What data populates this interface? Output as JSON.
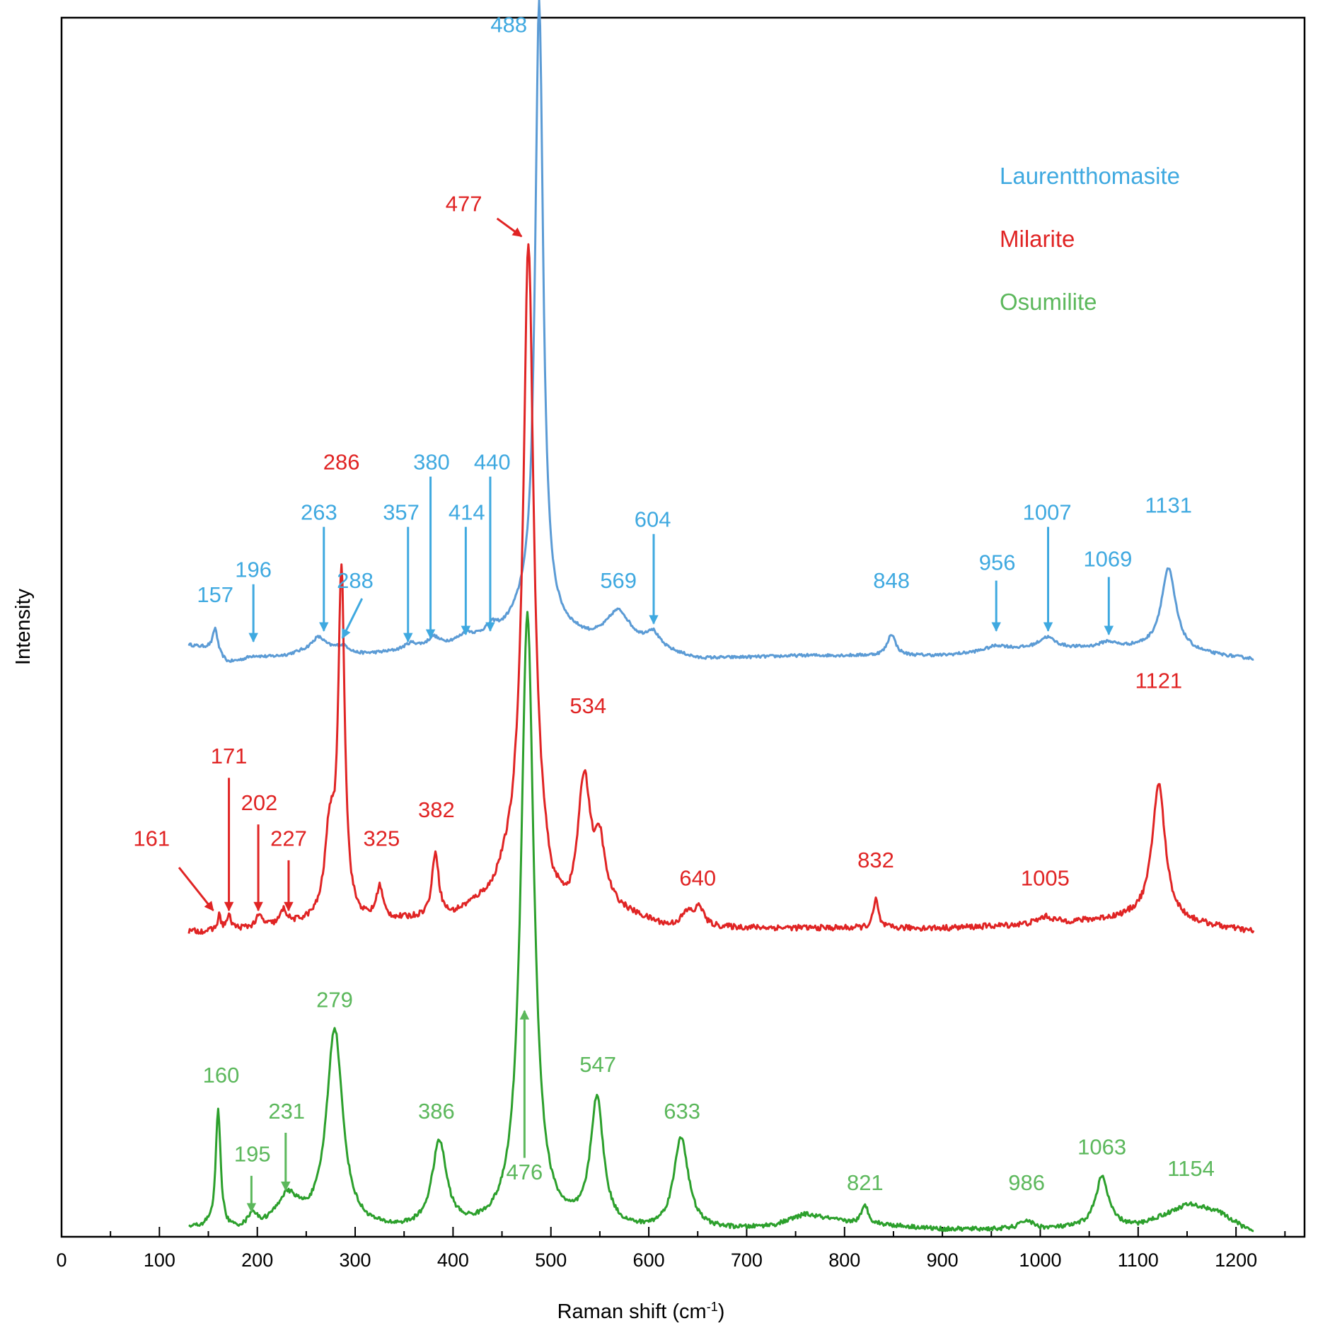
{
  "chart_data": {
    "type": "line",
    "title": "",
    "xlabel": "Raman shift (cm",
    "xlabel_sup": "-1",
    "xlabel_close": ")",
    "ylabel": "Intensity",
    "xlim": [
      0,
      1270
    ],
    "ylim": [
      0,
      1.7
    ],
    "x_ticks": [
      0,
      100,
      200,
      300,
      400,
      500,
      600,
      700,
      800,
      900,
      1000,
      1100,
      1200
    ],
    "y_ticks_shown": false,
    "grid": false,
    "legend_placement": "top-right",
    "series": [
      {
        "name": "Laurentthomasite",
        "color": "#5b9bd5",
        "label_color": "#3fa9e0",
        "baseline": 0.8,
        "x_range": [
          130,
          1218
        ],
        "noise": 0.002,
        "base_points": [
          [
            130,
            0.025
          ],
          [
            150,
            0.02
          ],
          [
            170,
            0.0
          ],
          [
            200,
            0.005
          ],
          [
            230,
            0.01
          ],
          [
            260,
            0.02
          ],
          [
            300,
            0.01
          ],
          [
            340,
            0.015
          ],
          [
            420,
            0.03
          ],
          [
            450,
            0.04
          ],
          [
            470,
            0.06
          ],
          [
            540,
            0.03
          ],
          [
            600,
            0.02
          ],
          [
            650,
            0.005
          ],
          [
            760,
            0.01
          ],
          [
            900,
            0.01
          ],
          [
            1000,
            0.02
          ],
          [
            1100,
            0.02
          ],
          [
            1218,
            0.005
          ]
        ],
        "peaks": [
          {
            "x": 157,
            "height": 0.035,
            "width": 3
          },
          {
            "x": 196,
            "height": 0.005,
            "width": 10
          },
          {
            "x": 263,
            "height": 0.015,
            "width": 8
          },
          {
            "x": 288,
            "height": 0.01,
            "width": 10
          },
          {
            "x": 357,
            "height": 0.008,
            "width": 8
          },
          {
            "x": 380,
            "height": 0.012,
            "width": 6
          },
          {
            "x": 414,
            "height": 0.01,
            "width": 8
          },
          {
            "x": 440,
            "height": 0.012,
            "width": 8
          },
          {
            "x": 488,
            "height": 0.87,
            "width": 5
          },
          {
            "x": 569,
            "height": 0.045,
            "width": 15
          },
          {
            "x": 604,
            "height": 0.02,
            "width": 8
          },
          {
            "x": 848,
            "height": 0.03,
            "width": 5
          },
          {
            "x": 956,
            "height": 0.008,
            "width": 15
          },
          {
            "x": 1007,
            "height": 0.015,
            "width": 10
          },
          {
            "x": 1069,
            "height": 0.008,
            "width": 10
          },
          {
            "x": 1131,
            "height": 0.115,
            "width": 9
          }
        ],
        "labels": [
          {
            "text": "157",
            "x": 157,
            "y": 0.885,
            "arrow": false
          },
          {
            "text": "196",
            "x": 196,
            "y": 0.92,
            "arrow": true,
            "arrow_from": [
              196,
              0.91
            ],
            "arrow_to": [
              196,
              0.83
            ]
          },
          {
            "text": "263",
            "x": 263,
            "y": 1.0,
            "arrow": true,
            "arrow_from": [
              268,
              0.99
            ],
            "arrow_to": [
              268,
              0.845
            ]
          },
          {
            "text": "288",
            "x": 300,
            "y": 0.905,
            "arrow": true,
            "arrow_from": [
              307,
              0.89
            ],
            "arrow_to": [
              287,
              0.835
            ]
          },
          {
            "text": "357",
            "x": 347,
            "y": 1.0,
            "arrow": true,
            "arrow_from": [
              354,
              0.99
            ],
            "arrow_to": [
              354,
              0.83
            ]
          },
          {
            "text": "380",
            "x": 378,
            "y": 1.07,
            "arrow": true,
            "arrow_from": [
              377,
              1.06
            ],
            "arrow_to": [
              377,
              0.835
            ]
          },
          {
            "text": "414",
            "x": 414,
            "y": 1.0,
            "arrow": true,
            "arrow_from": [
              413,
              0.99
            ],
            "arrow_to": [
              413,
              0.84
            ]
          },
          {
            "text": "440",
            "x": 440,
            "y": 1.07,
            "arrow": true,
            "arrow_from": [
              438,
              1.06
            ],
            "arrow_to": [
              438,
              0.845
            ]
          },
          {
            "text": "488",
            "x": 457,
            "y": 1.68,
            "arrow": false
          },
          {
            "text": "569",
            "x": 569,
            "y": 0.905,
            "arrow": false
          },
          {
            "text": "604",
            "x": 604,
            "y": 0.99,
            "arrow": true,
            "arrow_from": [
              605,
              0.98
            ],
            "arrow_to": [
              605,
              0.855
            ]
          },
          {
            "text": "848",
            "x": 848,
            "y": 0.905,
            "arrow": false
          },
          {
            "text": "956",
            "x": 956,
            "y": 0.93,
            "arrow": true,
            "arrow_from": [
              955,
              0.915
            ],
            "arrow_to": [
              955,
              0.845
            ]
          },
          {
            "text": "1007",
            "x": 1007,
            "y": 1.0,
            "arrow": true,
            "arrow_from": [
              1008,
              0.99
            ],
            "arrow_to": [
              1008,
              0.845
            ]
          },
          {
            "text": "1069",
            "x": 1069,
            "y": 0.935,
            "arrow": true,
            "arrow_from": [
              1070,
              0.92
            ],
            "arrow_to": [
              1070,
              0.84
            ]
          },
          {
            "text": "1131",
            "x": 1131,
            "y": 1.01,
            "arrow": false
          }
        ]
      },
      {
        "name": "Milarite",
        "color": "#e02424",
        "label_color": "#e02424",
        "baseline": 0.425,
        "x_range": [
          130,
          1218
        ],
        "noise": 0.004,
        "base_points": [
          [
            130,
            0.0
          ],
          [
            150,
            0.0
          ],
          [
            250,
            0.01
          ],
          [
            300,
            0.01
          ],
          [
            400,
            0.02
          ],
          [
            440,
            0.05
          ],
          [
            460,
            0.1
          ],
          [
            470,
            0.15
          ],
          [
            480,
            0.16
          ],
          [
            500,
            0.04
          ],
          [
            520,
            0.01
          ],
          [
            560,
            0.03
          ],
          [
            620,
            0.005
          ],
          [
            700,
            0.005
          ],
          [
            900,
            0.005
          ],
          [
            1000,
            0.01
          ],
          [
            1100,
            0.02
          ],
          [
            1160,
            0.01
          ],
          [
            1218,
            0.0
          ]
        ],
        "peaks": [
          {
            "x": 161,
            "height": 0.02,
            "width": 2
          },
          {
            "x": 171,
            "height": 0.018,
            "width": 3
          },
          {
            "x": 202,
            "height": 0.015,
            "width": 4
          },
          {
            "x": 227,
            "height": 0.02,
            "width": 4
          },
          {
            "x": 274,
            "height": 0.12,
            "width": 6
          },
          {
            "x": 286,
            "height": 0.48,
            "width": 4
          },
          {
            "x": 325,
            "height": 0.045,
            "width": 4
          },
          {
            "x": 382,
            "height": 0.09,
            "width": 4
          },
          {
            "x": 477,
            "height": 0.8,
            "width": 6
          },
          {
            "x": 534,
            "height": 0.19,
            "width": 8
          },
          {
            "x": 550,
            "height": 0.08,
            "width": 6
          },
          {
            "x": 640,
            "height": 0.02,
            "width": 8
          },
          {
            "x": 652,
            "height": 0.025,
            "width": 5
          },
          {
            "x": 832,
            "height": 0.04,
            "width": 3
          },
          {
            "x": 1005,
            "height": 0.01,
            "width": 10
          },
          {
            "x": 1121,
            "height": 0.19,
            "width": 8
          }
        ],
        "labels": [
          {
            "text": "161",
            "x": 92,
            "y": 0.545,
            "arrow": true,
            "arrow_from": [
              120,
              0.515
            ],
            "arrow_to": [
              155,
              0.455
            ]
          },
          {
            "text": "171",
            "x": 171,
            "y": 0.66,
            "arrow": true,
            "arrow_from": [
              171,
              0.64
            ],
            "arrow_to": [
              171,
              0.455
            ]
          },
          {
            "text": "202",
            "x": 202,
            "y": 0.595,
            "arrow": true,
            "arrow_from": [
              201,
              0.575
            ],
            "arrow_to": [
              201,
              0.455
            ]
          },
          {
            "text": "227",
            "x": 232,
            "y": 0.545,
            "arrow": true,
            "arrow_from": [
              232,
              0.525
            ],
            "arrow_to": [
              232,
              0.455
            ]
          },
          {
            "text": "286",
            "x": 286,
            "y": 1.07,
            "arrow": false
          },
          {
            "text": "325",
            "x": 327,
            "y": 0.545,
            "arrow": false
          },
          {
            "text": "382",
            "x": 383,
            "y": 0.585,
            "arrow": false
          },
          {
            "text": "477",
            "x": 411,
            "y": 1.43,
            "arrow": true,
            "arrow_from": [
              445,
              1.42
            ],
            "arrow_to": [
              470,
              1.395
            ]
          },
          {
            "text": "534",
            "x": 538,
            "y": 0.73,
            "arrow": false
          },
          {
            "text": "640",
            "x": 650,
            "y": 0.49,
            "arrow": false
          },
          {
            "text": "832",
            "x": 832,
            "y": 0.515,
            "arrow": false
          },
          {
            "text": "1005",
            "x": 1005,
            "y": 0.49,
            "arrow": false
          },
          {
            "text": "1121",
            "x": 1121,
            "y": 0.765,
            "arrow": false
          }
        ]
      },
      {
        "name": "Osumilite",
        "color": "#2ca02c",
        "label_color": "#5cb85c",
        "baseline": 0.005,
        "x_range": [
          130,
          1218
        ],
        "noise": 0.003,
        "base_points": [
          [
            130,
            0.005
          ],
          [
            150,
            0.005
          ],
          [
            155,
            0.0
          ],
          [
            300,
            0.0
          ],
          [
            440,
            0.0
          ],
          [
            620,
            0.0
          ],
          [
            700,
            0.005
          ],
          [
            730,
            0.01
          ],
          [
            760,
            0.025
          ],
          [
            800,
            0.015
          ],
          [
            900,
            0.005
          ],
          [
            1000,
            0.005
          ],
          [
            1100,
            0.01
          ],
          [
            1150,
            0.035
          ],
          [
            1180,
            0.03
          ],
          [
            1218,
            0.0
          ]
        ],
        "peaks": [
          {
            "x": 160,
            "height": 0.17,
            "width": 3
          },
          {
            "x": 195,
            "height": 0.02,
            "width": 5
          },
          {
            "x": 231,
            "height": 0.045,
            "width": 15
          },
          {
            "x": 279,
            "height": 0.28,
            "width": 10
          },
          {
            "x": 386,
            "height": 0.12,
            "width": 9
          },
          {
            "x": 476,
            "height": 0.86,
            "width": 8
          },
          {
            "x": 547,
            "height": 0.18,
            "width": 8
          },
          {
            "x": 633,
            "height": 0.13,
            "width": 9
          },
          {
            "x": 821,
            "height": 0.025,
            "width": 4
          },
          {
            "x": 986,
            "height": 0.012,
            "width": 8
          },
          {
            "x": 1063,
            "height": 0.07,
            "width": 8
          },
          {
            "x": 1154,
            "height": 0.005,
            "width": 20
          }
        ],
        "labels": [
          {
            "text": "160",
            "x": 163,
            "y": 0.215,
            "arrow": false
          },
          {
            "text": "195",
            "x": 195,
            "y": 0.105,
            "arrow": true,
            "arrow_from": [
              194,
              0.085
            ],
            "arrow_to": [
              194,
              0.035
            ]
          },
          {
            "text": "231",
            "x": 230,
            "y": 0.165,
            "arrow": true,
            "arrow_from": [
              229,
              0.145
            ],
            "arrow_to": [
              229,
              0.065
            ]
          },
          {
            "text": "279",
            "x": 279,
            "y": 0.32,
            "arrow": false
          },
          {
            "text": "386",
            "x": 383,
            "y": 0.165,
            "arrow": false
          },
          {
            "text": "476",
            "x": 473,
            "y": 0.08,
            "arrow": true,
            "arrow_from": [
              473,
              0.11
            ],
            "arrow_to": [
              473,
              0.315
            ]
          },
          {
            "text": "547",
            "x": 548,
            "y": 0.23,
            "arrow": false
          },
          {
            "text": "633",
            "x": 634,
            "y": 0.165,
            "arrow": false
          },
          {
            "text": "821",
            "x": 821,
            "y": 0.065,
            "arrow": false
          },
          {
            "text": "986",
            "x": 986,
            "y": 0.065,
            "arrow": false
          },
          {
            "text": "1063",
            "x": 1063,
            "y": 0.115,
            "arrow": false
          },
          {
            "text": "1154",
            "x": 1154,
            "y": 0.085,
            "arrow": false
          }
        ]
      }
    ]
  }
}
